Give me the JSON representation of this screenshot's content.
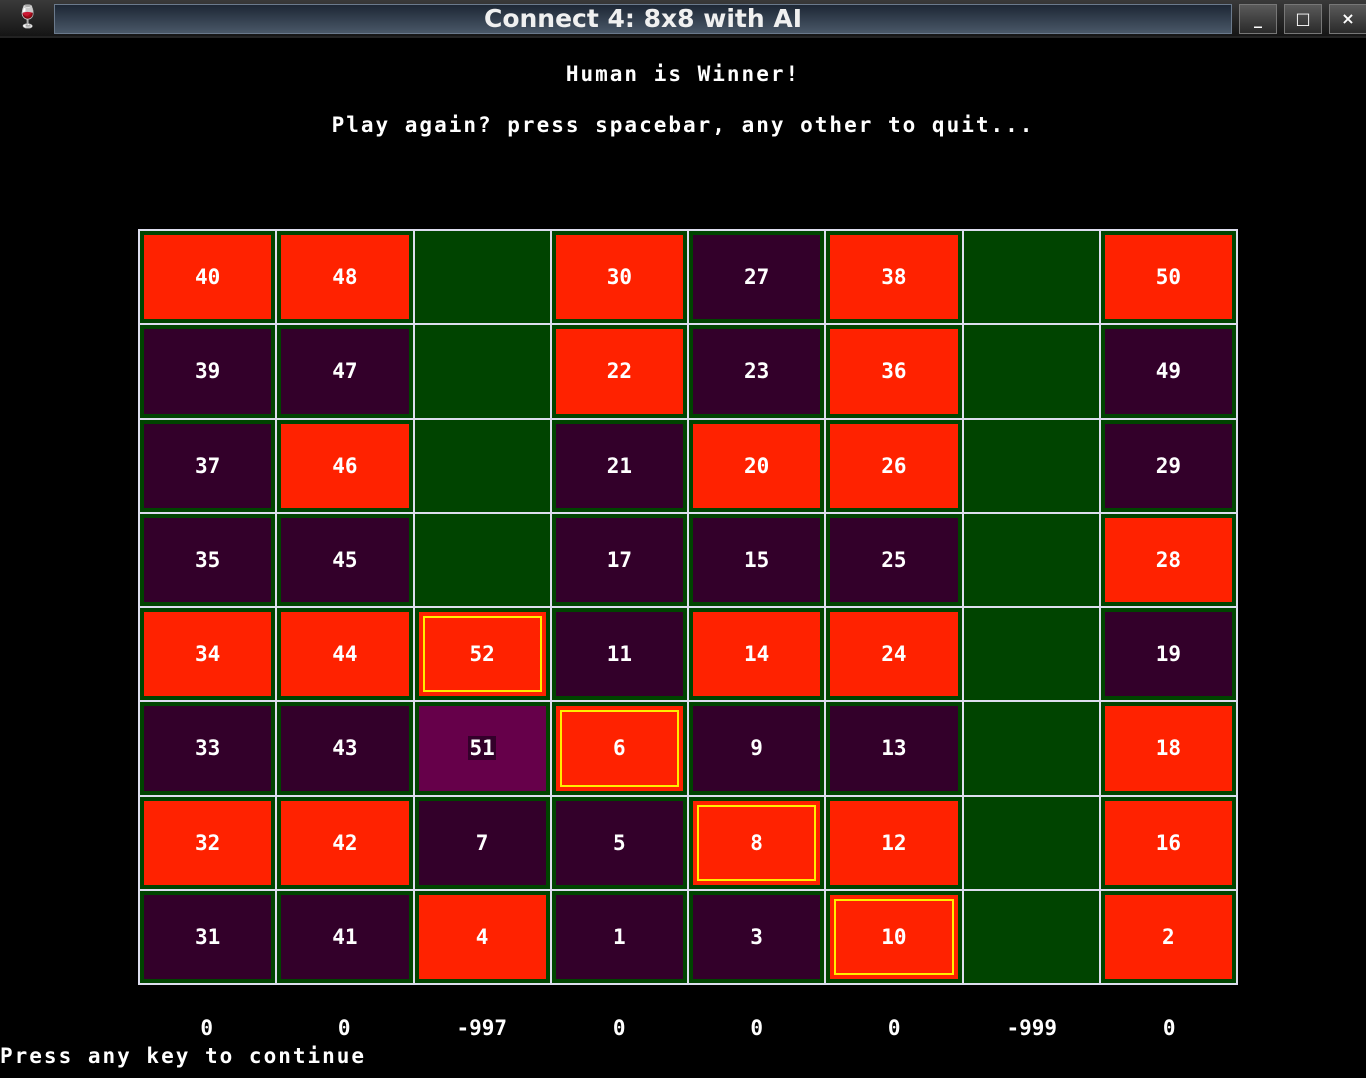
{
  "window": {
    "title": "Connect 4: 8x8 with AI",
    "icon": "wine-glass-icon",
    "buttons": [
      "_",
      "□",
      "×"
    ]
  },
  "status": {
    "winner": "Human is Winner!",
    "prompt": "Play again? press spacebar, any other to quit..."
  },
  "board": [
    [
      {
        "v": "40",
        "t": "r"
      },
      {
        "v": "48",
        "t": "r"
      },
      {
        "v": "",
        "t": "e"
      },
      {
        "v": "30",
        "t": "r"
      },
      {
        "v": "27",
        "t": "p"
      },
      {
        "v": "38",
        "t": "r"
      },
      {
        "v": "",
        "t": "e"
      },
      {
        "v": "50",
        "t": "r"
      }
    ],
    [
      {
        "v": "39",
        "t": "p"
      },
      {
        "v": "47",
        "t": "p"
      },
      {
        "v": "",
        "t": "e"
      },
      {
        "v": "22",
        "t": "r"
      },
      {
        "v": "23",
        "t": "p"
      },
      {
        "v": "36",
        "t": "r"
      },
      {
        "v": "",
        "t": "e"
      },
      {
        "v": "49",
        "t": "p"
      }
    ],
    [
      {
        "v": "37",
        "t": "p"
      },
      {
        "v": "46",
        "t": "r"
      },
      {
        "v": "",
        "t": "e"
      },
      {
        "v": "21",
        "t": "p"
      },
      {
        "v": "20",
        "t": "r"
      },
      {
        "v": "26",
        "t": "r"
      },
      {
        "v": "",
        "t": "e"
      },
      {
        "v": "29",
        "t": "p"
      }
    ],
    [
      {
        "v": "35",
        "t": "p"
      },
      {
        "v": "45",
        "t": "p"
      },
      {
        "v": "",
        "t": "e"
      },
      {
        "v": "17",
        "t": "p"
      },
      {
        "v": "15",
        "t": "p"
      },
      {
        "v": "25",
        "t": "p"
      },
      {
        "v": "",
        "t": "e"
      },
      {
        "v": "28",
        "t": "r"
      }
    ],
    [
      {
        "v": "34",
        "t": "r"
      },
      {
        "v": "44",
        "t": "r"
      },
      {
        "v": "52",
        "t": "w"
      },
      {
        "v": "11",
        "t": "p"
      },
      {
        "v": "14",
        "t": "r"
      },
      {
        "v": "24",
        "t": "r"
      },
      {
        "v": "",
        "t": "e"
      },
      {
        "v": "19",
        "t": "p"
      }
    ],
    [
      {
        "v": "33",
        "t": "p"
      },
      {
        "v": "43",
        "t": "p"
      },
      {
        "v": "51",
        "t": "h"
      },
      {
        "v": "6",
        "t": "w"
      },
      {
        "v": "9",
        "t": "p"
      },
      {
        "v": "13",
        "t": "p"
      },
      {
        "v": "",
        "t": "e"
      },
      {
        "v": "18",
        "t": "r"
      }
    ],
    [
      {
        "v": "32",
        "t": "r"
      },
      {
        "v": "42",
        "t": "r"
      },
      {
        "v": "7",
        "t": "p"
      },
      {
        "v": "5",
        "t": "p"
      },
      {
        "v": "8",
        "t": "w"
      },
      {
        "v": "12",
        "t": "r"
      },
      {
        "v": "",
        "t": "e"
      },
      {
        "v": "16",
        "t": "r"
      }
    ],
    [
      {
        "v": "31",
        "t": "p"
      },
      {
        "v": "41",
        "t": "p"
      },
      {
        "v": "4",
        "t": "r"
      },
      {
        "v": "1",
        "t": "p"
      },
      {
        "v": "3",
        "t": "p"
      },
      {
        "v": "10",
        "t": "w"
      },
      {
        "v": "",
        "t": "e"
      },
      {
        "v": "2",
        "t": "r"
      }
    ]
  ],
  "scores": [
    "0",
    "0",
    "-997",
    "0",
    "0",
    "0",
    "-999",
    "0"
  ],
  "footer": "Press any key to continue",
  "colors": {
    "human": "#ff2200",
    "ai": "#33002a",
    "last_move": "#66004a",
    "empty": "#004400",
    "win_outline": "#ffee00"
  }
}
